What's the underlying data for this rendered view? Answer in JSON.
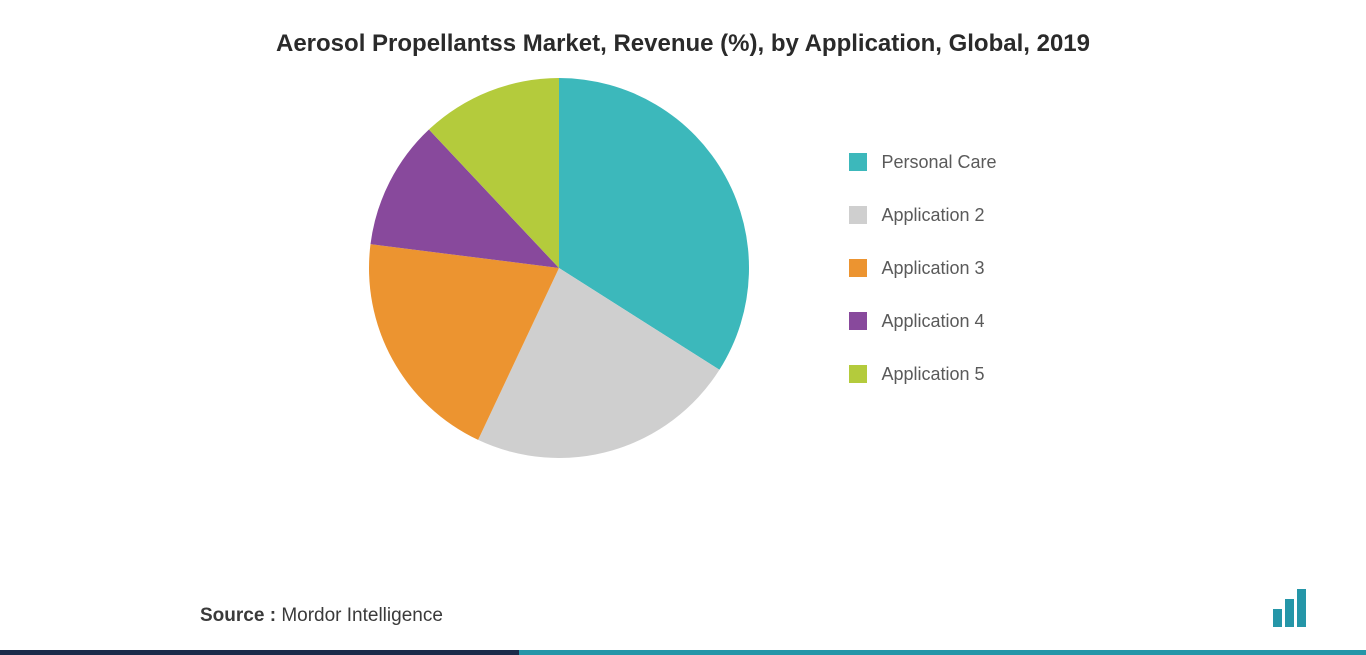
{
  "title": "Aerosol Propellantss Market, Revenue (%), by Application, Global, 2019",
  "chart": {
    "type": "pie",
    "background_color": "#ffffff",
    "radius": 190,
    "slices": [
      {
        "label": "Personal Care",
        "value": 34,
        "color": "#3cb8bb"
      },
      {
        "label": "Application 2",
        "value": 23,
        "color": "#cfcfcf"
      },
      {
        "label": "Application 3",
        "value": 20,
        "color": "#ec9430"
      },
      {
        "label": "Application 4",
        "value": 11,
        "color": "#88499c"
      },
      {
        "label": "Application 5",
        "value": 12,
        "color": "#b4cb3c"
      }
    ],
    "title_fontsize": 24,
    "title_color": "#2a2a2a",
    "legend_fontsize": 18,
    "legend_color": "#5a5a5a",
    "legend_swatch_size": 18,
    "legend_gap": 32
  },
  "source": {
    "label": "Source :",
    "value": "Mordor Intelligence",
    "fontsize": 19,
    "label_weight": 700,
    "color": "#3a3a3a"
  },
  "branding": {
    "logo_bar_color": "#2596a8",
    "gradient_line_colors": [
      "#1a2b4a",
      "#2596a8"
    ],
    "gradient_split_percent": 38,
    "gradient_line_height": 5
  }
}
